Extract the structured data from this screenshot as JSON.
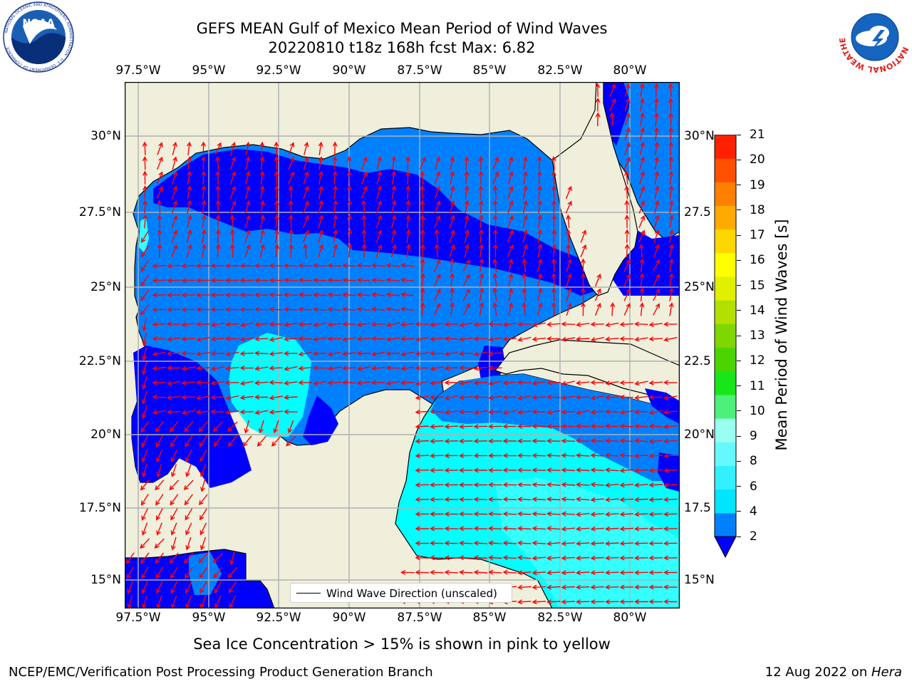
{
  "title": {
    "line1": "GEFS MEAN Gulf of Mexico Mean Period of Wind Waves",
    "line2": "20220810 t18z 168h fcst   Max: 6.82"
  },
  "logos": {
    "noaa_text": "NOAA",
    "noaa_ring": "NATIONAL OCEANIC AND ATMOSPHERIC ADMINISTRATION · U.S. DEPARTMENT OF COMMERCE",
    "nws_ring": "NATIONAL WEATHER SERVICE"
  },
  "lon_ticks": [
    "97.5°W",
    "95°W",
    "92.5°W",
    "90°W",
    "87.5°W",
    "85°W",
    "82.5°W",
    "80°W"
  ],
  "lat_ticks_left": [
    "30°N",
    "27.5°N",
    "25°N",
    "22.5°N",
    "20°N",
    "17.5°N",
    "15°N"
  ],
  "lat_ticks_right": [
    "30°N",
    "27.5",
    "25°N",
    "22.5",
    "20°N",
    "17.5",
    "15°N"
  ],
  "legend": {
    "label": "Wind Wave Direction (unscaled)"
  },
  "colorbar": {
    "label": "Mean Period of Wind Waves [s]",
    "ticks": [
      "2",
      "4",
      "6",
      "8",
      "9",
      "10",
      "11",
      "12",
      "13",
      "14",
      "15",
      "16",
      "17",
      "18",
      "19",
      "20",
      "21"
    ],
    "colors": [
      "#0080ff",
      "#00e5ff",
      "#33f0ff",
      "#66f8ff",
      "#99fff0",
      "#4cf07a",
      "#19e619",
      "#4cd400",
      "#7fd600",
      "#b3e000",
      "#e0f000",
      "#ffff00",
      "#ffd700",
      "#ffaa00",
      "#ff8000",
      "#ff5000",
      "#ff2000",
      "#ff0000"
    ],
    "under_color": "#0000ff"
  },
  "map": {
    "lon_range": [
      -98,
      -78.25
    ],
    "lat_range": [
      14,
      31.75
    ],
    "land_color": "#efefdc",
    "shade_colors": {
      "lt2": "#0000ff",
      "2to4": "#0080ff",
      "4to6": "#00ffff",
      "6to8": "#33ffff"
    },
    "arrow_color": "#ff0000"
  },
  "caption": "Sea Ice Concentration > 15% is shown in pink to yellow",
  "footer": {
    "left": "NCEP/EMC/Verification Post Processing Product Generation Branch",
    "right_prefix": "12 Aug 2022 on ",
    "right_host": "Hera"
  }
}
